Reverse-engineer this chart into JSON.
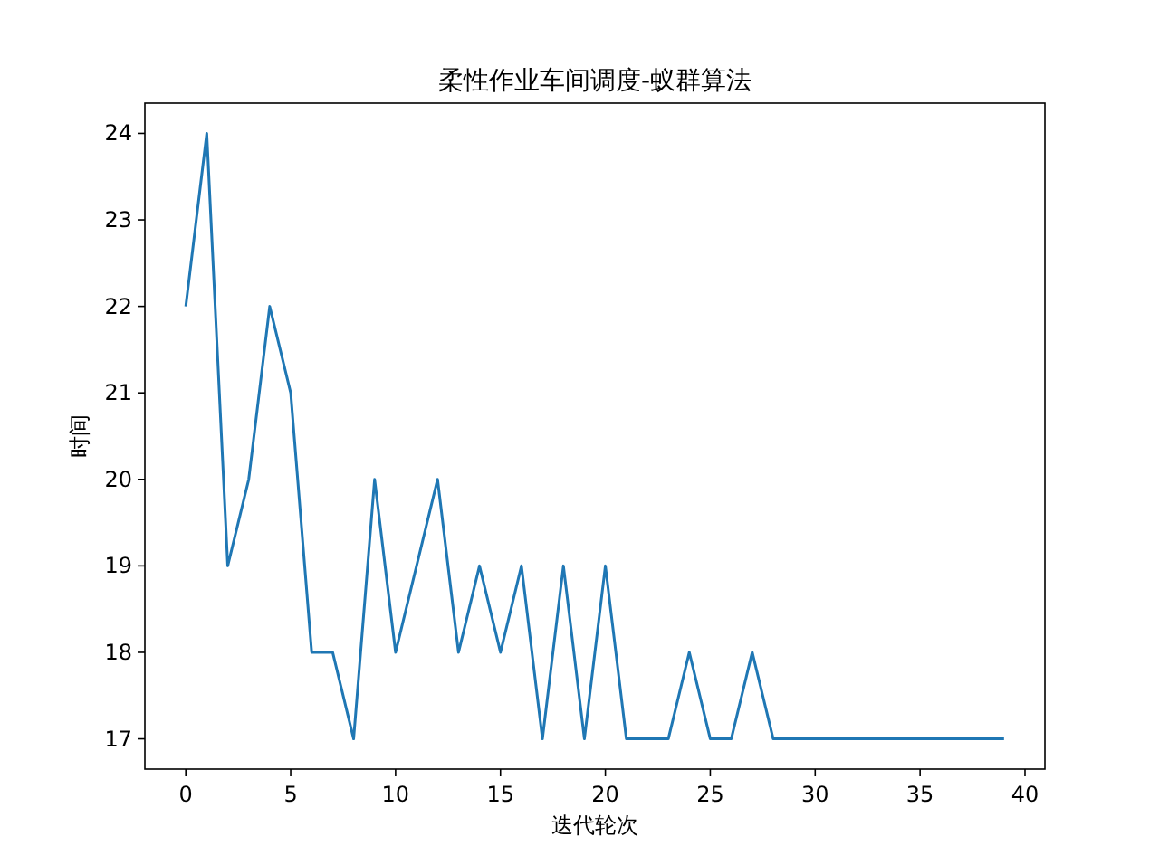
{
  "chart_data": {
    "type": "line",
    "title": "柔性作业车间调度-蚁群算法",
    "xlabel": "迭代轮次",
    "ylabel": "时间",
    "x": [
      0,
      1,
      2,
      3,
      4,
      5,
      6,
      7,
      8,
      9,
      10,
      11,
      12,
      13,
      14,
      15,
      16,
      17,
      18,
      19,
      20,
      21,
      22,
      23,
      24,
      25,
      26,
      27,
      28,
      29,
      30,
      31,
      32,
      33,
      34,
      35,
      36,
      37,
      38,
      39
    ],
    "series": [
      {
        "color": "#1f77b4",
        "values": [
          22,
          24,
          19,
          20,
          22,
          21,
          18,
          18,
          17,
          20,
          18,
          19,
          20,
          18,
          19,
          18,
          19,
          17,
          19,
          17,
          19,
          17,
          17,
          17,
          18,
          17,
          17,
          18,
          17,
          17,
          17,
          17,
          17,
          17,
          17,
          17,
          17,
          17,
          17,
          17
        ]
      }
    ],
    "xlim": [
      -1.95,
      40.95
    ],
    "ylim": [
      16.65,
      24.35
    ],
    "xticks": [
      0,
      5,
      10,
      15,
      20,
      25,
      30,
      35,
      40
    ],
    "yticks": [
      17,
      18,
      19,
      20,
      21,
      22,
      23,
      24
    ],
    "grid": false
  }
}
